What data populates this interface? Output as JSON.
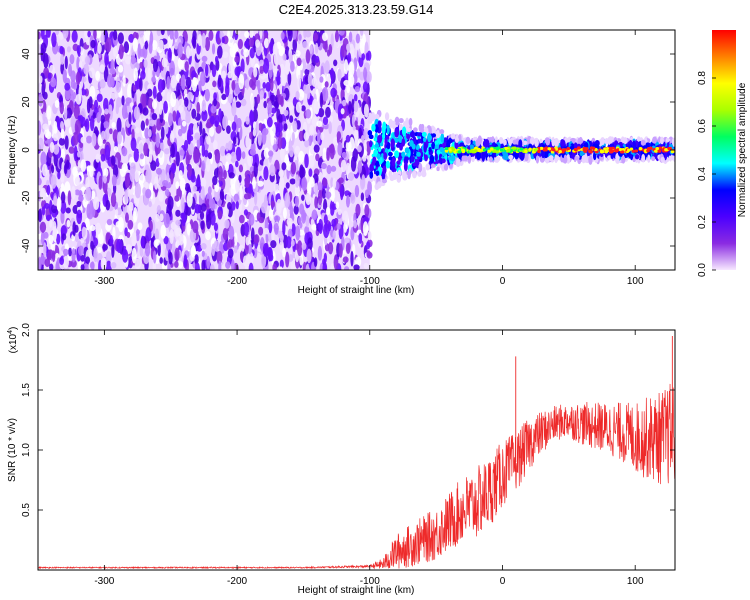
{
  "title": "C2E4.2025.313.23.59.G14",
  "chart_data": [
    {
      "type": "heatmap",
      "xlabel": "Height of straight line (km)",
      "ylabel": "Frequency (Hz)",
      "xlim": [
        -350,
        130
      ],
      "ylim": [
        -50,
        50
      ],
      "x_ticks": [
        -300,
        -200,
        -100,
        0,
        100
      ],
      "y_ticks": [
        -40,
        -20,
        0,
        20,
        40
      ],
      "x_tick_labels": [
        "-300",
        "-200",
        "-100",
        "0",
        "100"
      ],
      "y_tick_labels": [
        "-40",
        "-20",
        "0",
        "20",
        "40"
      ],
      "grid": false,
      "noise_region": {
        "x_from": -350,
        "x_to": -100,
        "freq_from": -50,
        "freq_to": 50
      },
      "signal_band": {
        "x_from": -100,
        "x_to": 130,
        "center_freq": 0
      },
      "colorbar": {
        "label": "Normalized spectral amplitude",
        "range": [
          0,
          1
        ],
        "ticks": [
          0.0,
          0.2,
          0.4,
          0.6,
          0.8
        ],
        "tick_labels": [
          "0.0",
          "0.2",
          "0.4",
          "0.6",
          "0.8"
        ],
        "colormap": [
          "#f7e8ff",
          "#8a2be2",
          "#4b00ff",
          "#0000ff",
          "#00ffff",
          "#00ff60",
          "#aaff00",
          "#ffff00",
          "#ff8000",
          "#ff0000"
        ]
      }
    },
    {
      "type": "line",
      "xlabel": "Height of straight line (km)",
      "ylabel": "SNR (10 * v/v)",
      "multiplier": "(x10",
      "multiplier_exp": "4",
      "multiplier_close": ")",
      "xlim": [
        -350,
        130
      ],
      "ylim": [
        0,
        2.0
      ],
      "x_ticks": [
        -300,
        -200,
        -100,
        0,
        100
      ],
      "y_ticks": [
        0.5,
        1.0,
        1.5,
        2.0
      ],
      "x_tick_labels": [
        "-300",
        "-200",
        "-100",
        "0",
        "100"
      ],
      "y_tick_labels": [
        "0.5",
        "1.0",
        "1.5",
        "2.0"
      ],
      "series": [
        {
          "name": "SNR",
          "color": "#ee2a2a",
          "x": [
            -350,
            -300,
            -250,
            -200,
            -150,
            -100,
            -90,
            -80,
            -70,
            -60,
            -50,
            -40,
            -30,
            -20,
            -10,
            0,
            10,
            20,
            30,
            40,
            50,
            60,
            70,
            80,
            90,
            100,
            110,
            120,
            130
          ],
          "values": [
            0.02,
            0.02,
            0.02,
            0.02,
            0.02,
            0.03,
            0.05,
            0.15,
            0.2,
            0.25,
            0.3,
            0.4,
            0.5,
            0.55,
            0.65,
            0.8,
            0.9,
            1.05,
            1.15,
            1.22,
            1.25,
            1.22,
            1.2,
            1.18,
            1.15,
            1.1,
            1.1,
            1.1,
            1.15
          ],
          "spread": [
            0.005,
            0.005,
            0.005,
            0.005,
            0.005,
            0.01,
            0.05,
            0.15,
            0.18,
            0.2,
            0.22,
            0.25,
            0.28,
            0.3,
            0.3,
            0.28,
            0.25,
            0.22,
            0.18,
            0.15,
            0.15,
            0.18,
            0.2,
            0.22,
            0.25,
            0.3,
            0.35,
            0.4,
            0.45
          ],
          "peaks": [
            {
              "x": 10,
              "y": 1.78
            },
            {
              "x": 128,
              "y": 1.95
            }
          ]
        }
      ]
    }
  ]
}
